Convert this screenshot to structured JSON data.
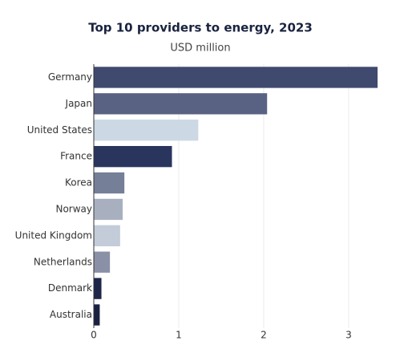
{
  "chart_data": {
    "type": "bar",
    "orientation": "horizontal",
    "title": "Top 10 providers to energy, 2023",
    "subtitle": "USD million",
    "categories": [
      "Germany",
      "Japan",
      "United States",
      "France",
      "Korea",
      "Norway",
      "United Kingdom",
      "Netherlands",
      "Denmark",
      "Australia"
    ],
    "values": [
      3.34,
      2.04,
      1.23,
      0.92,
      0.36,
      0.34,
      0.31,
      0.19,
      0.09,
      0.07
    ],
    "colors": [
      "#3f4a6e",
      "#5a6284",
      "#ccd9e4",
      "#2a355e",
      "#767f98",
      "#a8b0c0",
      "#c3ccd8",
      "#8a91a6",
      "#1e2748",
      "#1b2140"
    ],
    "xlim": [
      0,
      3.34
    ],
    "xticks": [
      0,
      1,
      2,
      3
    ],
    "grid": true
  }
}
